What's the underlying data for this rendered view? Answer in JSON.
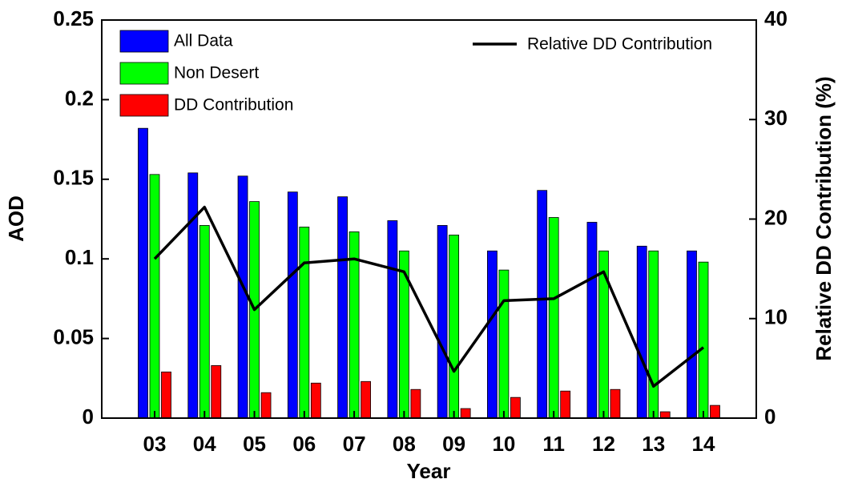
{
  "chart_data": {
    "type": "bar",
    "xlabel": "Year",
    "ylabel": "AOD",
    "y2label": "Relative DD Contribution (%)",
    "categories": [
      "03",
      "04",
      "05",
      "06",
      "07",
      "08",
      "09",
      "10",
      "11",
      "12",
      "13",
      "14"
    ],
    "ylim": [
      0,
      0.25
    ],
    "yticks": [
      0,
      0.05,
      0.1,
      0.15,
      0.2,
      0.25
    ],
    "y2lim": [
      0,
      40
    ],
    "y2ticks": [
      0,
      10,
      20,
      30,
      40
    ],
    "grid": false,
    "series": [
      {
        "name": "All Data",
        "color": "#0000ff",
        "type": "bar",
        "values": [
          0.182,
          0.154,
          0.152,
          0.142,
          0.139,
          0.124,
          0.121,
          0.105,
          0.143,
          0.123,
          0.108,
          0.105
        ]
      },
      {
        "name": "Non Desert",
        "color": "#00ff00",
        "type": "bar",
        "values": [
          0.153,
          0.121,
          0.136,
          0.12,
          0.117,
          0.105,
          0.115,
          0.093,
          0.126,
          0.105,
          0.105,
          0.098
        ]
      },
      {
        "name": "DD Contribution",
        "color": "#ff0000",
        "type": "bar",
        "values": [
          0.029,
          0.033,
          0.016,
          0.022,
          0.023,
          0.018,
          0.006,
          0.013,
          0.017,
          0.018,
          0.004,
          0.008
        ]
      },
      {
        "name": "Relative DD Contribution",
        "color": "#000000",
        "type": "line",
        "axis": "y2",
        "values": [
          16.0,
          21.2,
          10.9,
          15.6,
          16.0,
          14.7,
          4.7,
          11.8,
          12.0,
          14.7,
          3.2,
          7.1
        ]
      }
    ]
  }
}
